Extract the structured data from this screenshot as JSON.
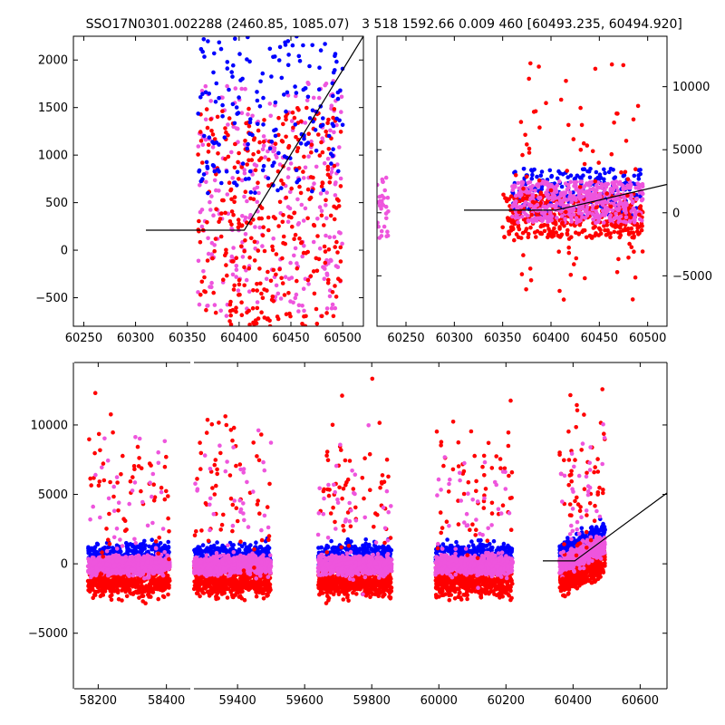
{
  "figure": {
    "title_left": "SSO17N0301.002288 (2460.85, 1085.07)",
    "title_right": "3 518 1592.66 0.009 460 [60493.235, 60494.920]"
  },
  "colors": {
    "blue": "#0000ff",
    "red": "#ff0000",
    "magenta": "#ee55dd",
    "line": "#000000"
  },
  "chart_data": [
    {
      "id": "top_left",
      "type": "scatter",
      "xlim": [
        60240,
        60520
      ],
      "ylim": [
        -800,
        2250
      ],
      "xticks": [
        60250,
        60300,
        60350,
        60400,
        60450,
        60500
      ],
      "yticks": [
        -500,
        0,
        500,
        1000,
        1500,
        2000
      ],
      "yaxis_side": "left",
      "model_line": [
        [
          60310,
          210
        ],
        [
          60405,
          210
        ],
        [
          60520,
          2250
        ]
      ],
      "clusters": [
        {
          "color": "magenta",
          "x": [
            60360,
            60500
          ],
          "y": [
            -700,
            1800
          ],
          "n": 300
        },
        {
          "color": "red",
          "x": [
            60360,
            60500
          ],
          "y": [
            -800,
            1500
          ],
          "n": 350
        },
        {
          "color": "blue",
          "x": [
            60360,
            60500
          ],
          "y": [
            600,
            2250
          ],
          "n": 180
        }
      ]
    },
    {
      "id": "top_right",
      "type": "scatter",
      "xlim": [
        60220,
        60520
      ],
      "ylim": [
        -9000,
        14000
      ],
      "xticks": [
        60250,
        60300,
        60350,
        60400,
        60450,
        60500
      ],
      "yticks": [
        -5000,
        0,
        5000,
        10000
      ],
      "yaxis_side": "right",
      "model_line": [
        [
          60310,
          210
        ],
        [
          60405,
          210
        ],
        [
          60520,
          2250
        ]
      ],
      "clusters": [
        {
          "color": "blue",
          "x": [
            60360,
            60495
          ],
          "y": [
            -500,
            3500
          ],
          "n": 250
        },
        {
          "color": "red",
          "x": [
            60350,
            60495
          ],
          "y": [
            -2000,
            1500
          ],
          "n": 400
        },
        {
          "color": "magenta",
          "x": [
            60360,
            60495
          ],
          "y": [
            -800,
            2500
          ],
          "n": 500
        },
        {
          "color": "red",
          "x": [
            60360,
            60495
          ],
          "y": [
            -7000,
            12000
          ],
          "n": 90
        },
        {
          "color": "magenta",
          "x": [
            60220,
            60232
          ],
          "y": [
            -2000,
            3000
          ],
          "n": 30
        }
      ]
    },
    {
      "id": "bottom",
      "type": "scatter",
      "broken_axis": true,
      "segments": [
        {
          "xlim": [
            58130,
            58470
          ],
          "xticks": [
            58200,
            58400
          ],
          "px": [
            82,
            210
          ]
        },
        {
          "xlim": [
            59270,
            60680
          ],
          "xticks": [
            59400,
            59600,
            59800,
            60000,
            60200,
            60400,
            60600
          ],
          "px": [
            214,
            736
          ]
        }
      ],
      "ylim": [
        -9000,
        14500
      ],
      "yticks": [
        -5000,
        0,
        5000,
        10000
      ],
      "yaxis_side": "left",
      "model_line": [
        [
          60310,
          210
        ],
        [
          60405,
          210
        ],
        [
          60680,
          5100
        ]
      ],
      "seasons": [
        {
          "seg": 0,
          "x": [
            58170,
            58410
          ]
        },
        {
          "seg": 1,
          "x": [
            59270,
            59500
          ]
        },
        {
          "seg": 1,
          "x": [
            59640,
            59860
          ]
        },
        {
          "seg": 1,
          "x": [
            59990,
            60220
          ]
        },
        {
          "seg": 1,
          "x": [
            60360,
            60495
          ]
        }
      ]
    }
  ]
}
